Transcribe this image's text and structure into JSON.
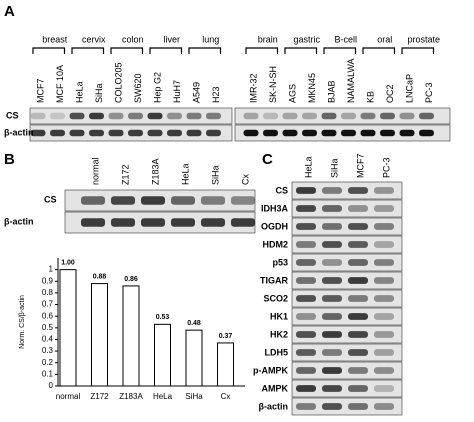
{
  "panel_a": {
    "label": "A",
    "groups": [
      {
        "name": "breast",
        "lanes": [
          "MCF7",
          "MCF 10A"
        ]
      },
      {
        "name": "cervix",
        "lanes": [
          "HeLa",
          "SiHa"
        ]
      },
      {
        "name": "colon",
        "lanes": [
          "COLO205",
          "SW620"
        ]
      },
      {
        "name": "liver",
        "lanes": [
          "Hep G2",
          "HuH7"
        ]
      },
      {
        "name": "lung",
        "lanes": [
          "A549",
          "H23"
        ]
      },
      {
        "name": "brain",
        "lanes": [
          "IMR-32",
          "SK-N-SH"
        ]
      },
      {
        "name": "gastric",
        "lanes": [
          "AGS",
          "MKN45"
        ]
      },
      {
        "name": "B-cell",
        "lanes": [
          "BJAB",
          "NAMALWA"
        ]
      },
      {
        "name": "oral",
        "lanes": [
          "KB",
          "OC2"
        ]
      },
      {
        "name": "prostate",
        "lanes": [
          "LNCaP",
          "PC-3"
        ]
      }
    ],
    "rows": [
      "CS",
      "β-actin"
    ]
  },
  "panel_b": {
    "label": "B",
    "lanes": [
      "normal",
      "Z172",
      "Z183A",
      "HeLa",
      "SiHa",
      "Cx"
    ],
    "rows": [
      "CS",
      "β-actin"
    ]
  },
  "chart_data": {
    "type": "bar",
    "ylabel": "Norm. CS/β-actin",
    "categories": [
      "normal",
      "Z172",
      "Z183A",
      "HeLa",
      "SiHa",
      "Cx"
    ],
    "values": [
      1,
      0.88,
      0.86,
      0.53,
      0.48,
      0.37
    ],
    "value_labels": [
      "1.00",
      "0.88",
      "0.86",
      "0.53",
      "0.48",
      "0.37"
    ],
    "color": "#ffffff",
    "ylim": [
      0,
      1.1
    ],
    "yticks": [
      0,
      0.1,
      0.2,
      0.3,
      0.4,
      0.5,
      0.6,
      0.7,
      0.8,
      0.9,
      1
    ]
  },
  "panel_c": {
    "label": "C",
    "lanes": [
      "HeLa",
      "SiHa",
      "MCF7",
      "PC-3"
    ],
    "rows": [
      "CS",
      "IDH3A",
      "OGDH",
      "HDM2",
      "p53",
      "TIGAR",
      "SCO2",
      "HK1",
      "HK2",
      "LDH5",
      "p-AMPK",
      "AMPK",
      "β-actin"
    ]
  }
}
